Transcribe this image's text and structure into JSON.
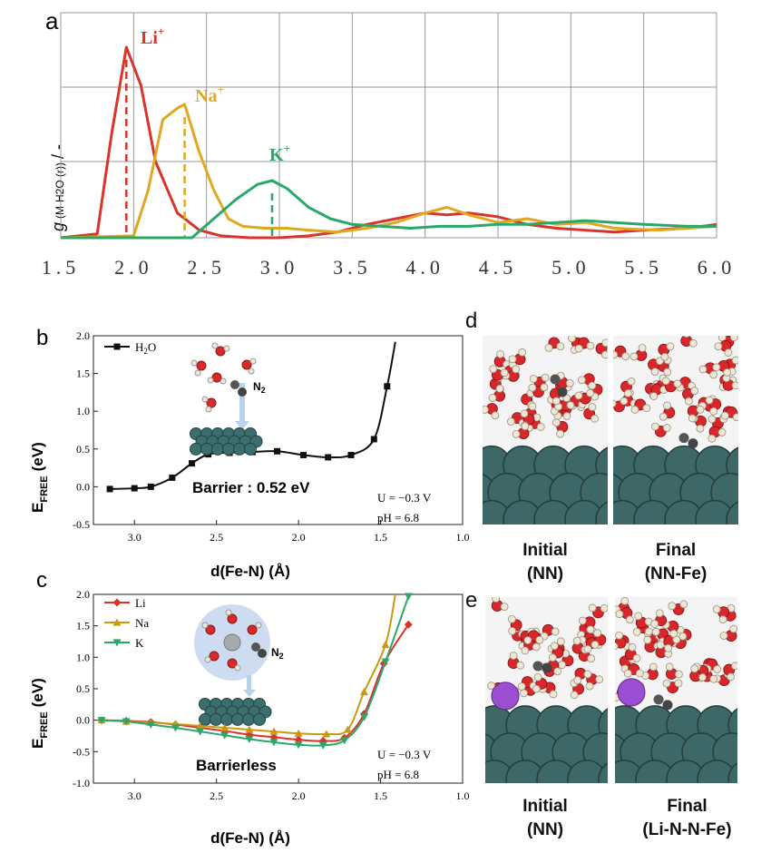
{
  "panel_labels": {
    "a": "a",
    "b": "b",
    "c": "c",
    "d": "d",
    "e": "e"
  },
  "panel_a": {
    "ylabel_g": "g",
    "ylabel_sub": "(M-H2O (r))",
    "ylabel_tail": "/ -"
  },
  "panel_b": {
    "ylabel_main": "E",
    "ylabel_sub": "FREE",
    "ylabel_unit": "(eV)",
    "xlabel": "d(Fe-N) (Å)",
    "annotation": "Barrier : 0.52 eV",
    "cond_u": "U = −0.3 V",
    "cond_ph": "pH =  6.8",
    "inset_n2": "N",
    "inset_n2_sub": "2"
  },
  "panel_c": {
    "ylabel_main": "E",
    "ylabel_sub": "FREE",
    "ylabel_unit": "(eV)",
    "xlabel": "d(Fe-N) (Å)",
    "annotation": "Barrierless",
    "cond_u": "U = −0.3 V",
    "cond_ph": "pH =  6.8",
    "inset_n2": "N",
    "inset_n2_sub": "2"
  },
  "panel_d": {
    "caption_left_1": "Initial",
    "caption_left_2": "(NN)",
    "caption_right_1": "Final",
    "caption_right_2": "(NN-Fe)"
  },
  "panel_e": {
    "caption_left_1": "Initial",
    "caption_left_2": "(NN)",
    "caption_right_1": "Final",
    "caption_right_2": "(Li-N-N-Fe)"
  },
  "colors": {
    "li": "#d9342b",
    "na": "#e0a820",
    "k": "#2aa86a",
    "black": "#111111"
  },
  "chart_data": [
    {
      "type": "line",
      "id": "a",
      "title": "",
      "xlabel": "",
      "ylabel": "g (M-H2O (r)) / -",
      "xlim": [
        1.5,
        6.0
      ],
      "ylim": [
        0,
        1.0
      ],
      "xticks": [
        1.5,
        2.0,
        2.5,
        3.0,
        3.5,
        4.0,
        4.5,
        5.0,
        5.5,
        6.0
      ],
      "xtick_labels": [
        "1.5",
        "2.0",
        "2.5",
        "3.0",
        "3.5",
        "4.0",
        "4.5",
        "5.0",
        "5.5",
        "6.0"
      ],
      "grid": true,
      "series": [
        {
          "name": "Li",
          "label": "Li",
          "sup": "+",
          "color": "#d9342b",
          "peak_x": 1.95,
          "x": [
            1.5,
            1.75,
            1.85,
            1.95,
            2.05,
            2.15,
            2.3,
            2.45,
            2.6,
            2.8,
            3.0,
            3.2,
            3.4,
            3.6,
            3.8,
            4.0,
            4.15,
            4.3,
            4.5,
            4.7,
            4.9,
            5.1,
            5.3,
            5.5,
            5.8,
            6.0
          ],
          "y": [
            0.0,
            0.02,
            0.55,
            1.0,
            0.8,
            0.4,
            0.13,
            0.04,
            0.01,
            0.0,
            0.0,
            0.01,
            0.03,
            0.07,
            0.1,
            0.13,
            0.12,
            0.13,
            0.11,
            0.07,
            0.05,
            0.04,
            0.03,
            0.04,
            0.05,
            0.07
          ]
        },
        {
          "name": "Na",
          "label": "Na",
          "sup": "+",
          "color": "#e0a820",
          "peak_x": 2.35,
          "x": [
            1.5,
            2.0,
            2.1,
            2.2,
            2.3,
            2.35,
            2.45,
            2.55,
            2.65,
            2.75,
            2.9,
            3.05,
            3.2,
            3.4,
            3.6,
            3.8,
            4.0,
            4.15,
            4.3,
            4.5,
            4.7,
            4.9,
            5.1,
            5.3,
            5.6,
            6.0
          ],
          "y": [
            0.0,
            0.01,
            0.25,
            0.62,
            0.68,
            0.7,
            0.45,
            0.25,
            0.1,
            0.06,
            0.05,
            0.05,
            0.04,
            0.03,
            0.05,
            0.08,
            0.13,
            0.16,
            0.12,
            0.08,
            0.1,
            0.07,
            0.08,
            0.05,
            0.04,
            0.06
          ]
        },
        {
          "name": "K",
          "label": "K",
          "sup": "+",
          "color": "#2aa86a",
          "peak_x": 2.95,
          "x": [
            1.5,
            2.4,
            2.55,
            2.7,
            2.85,
            2.95,
            3.05,
            3.2,
            3.35,
            3.5,
            3.7,
            3.9,
            4.1,
            4.3,
            4.5,
            4.7,
            4.9,
            5.1,
            5.3,
            5.5,
            5.8,
            6.0
          ],
          "y": [
            0.0,
            0.0,
            0.1,
            0.2,
            0.28,
            0.3,
            0.26,
            0.16,
            0.1,
            0.07,
            0.06,
            0.05,
            0.06,
            0.06,
            0.07,
            0.07,
            0.08,
            0.09,
            0.08,
            0.07,
            0.06,
            0.06
          ]
        }
      ]
    },
    {
      "type": "line",
      "id": "b",
      "xlabel": "d(Fe-N) (Å)",
      "ylabel": "E_FREE (eV)",
      "xlim": [
        3.25,
        1.0
      ],
      "ylim": [
        -0.5,
        2.0
      ],
      "xticks": [
        3.0,
        2.5,
        2.0,
        1.5,
        1.0
      ],
      "xtick_labels": [
        "3.0",
        "2.5",
        "2.0",
        "1.5",
        "1.0"
      ],
      "yticks": [
        -0.5,
        0.0,
        0.5,
        1.0,
        1.5,
        2.0
      ],
      "ytick_labels": [
        "-0.5",
        "0.0",
        "0.5",
        "1.0",
        "1.5",
        "2.0"
      ],
      "legend_position": "top-left",
      "series": [
        {
          "name": "H2O",
          "label": "H",
          "sub": "2",
          "label_tail": "O",
          "color": "#111111",
          "marker": "square",
          "x": [
            3.15,
            3.0,
            2.9,
            2.77,
            2.65,
            2.55,
            2.42,
            2.28,
            2.13,
            1.97,
            1.82,
            1.68,
            1.54,
            1.46
          ],
          "y": [
            -0.03,
            -0.02,
            0.0,
            0.12,
            0.31,
            0.43,
            0.45,
            0.46,
            0.47,
            0.42,
            0.39,
            0.42,
            0.63,
            1.33
          ],
          "tail_x": [
            1.41
          ],
          "tail_y": [
            1.92
          ]
        }
      ]
    },
    {
      "type": "line",
      "id": "c",
      "xlabel": "d(Fe-N) (Å)",
      "ylabel": "E_FREE (eV)",
      "xlim": [
        3.25,
        1.0
      ],
      "ylim": [
        -1.0,
        2.0
      ],
      "xticks": [
        3.0,
        2.5,
        2.0,
        1.5,
        1.0
      ],
      "xtick_labels": [
        "3.0",
        "2.5",
        "2.0",
        "1.5",
        "1.0"
      ],
      "yticks": [
        -1.0,
        -0.5,
        0.0,
        0.5,
        1.0,
        1.5,
        2.0
      ],
      "ytick_labels": [
        "-1.0",
        "-0.5",
        "0.0",
        "0.5",
        "1.0",
        "1.5",
        "2.0"
      ],
      "legend_position": "top-left",
      "series": [
        {
          "name": "Li",
          "label": "Li",
          "color": "#d9342b",
          "marker": "diamond",
          "x": [
            3.2,
            3.05,
            2.9,
            2.75,
            2.6,
            2.45,
            2.3,
            2.15,
            2.0,
            1.85,
            1.72,
            1.6,
            1.48,
            1.33
          ],
          "y": [
            0.0,
            -0.01,
            -0.03,
            -0.07,
            -0.12,
            -0.17,
            -0.23,
            -0.27,
            -0.31,
            -0.33,
            -0.28,
            0.1,
            0.9,
            1.52
          ],
          "tail_x": [],
          "tail_y": []
        },
        {
          "name": "Na",
          "label": "Na",
          "color": "#c99a10",
          "marker": "triangle-up",
          "x": [
            3.2,
            3.05,
            2.9,
            2.75,
            2.6,
            2.45,
            2.3,
            2.15,
            2.0,
            1.83,
            1.7,
            1.6,
            1.47
          ],
          "y": [
            0.0,
            -0.02,
            -0.04,
            -0.06,
            -0.09,
            -0.12,
            -0.15,
            -0.18,
            -0.21,
            -0.22,
            -0.15,
            0.45,
            1.2
          ],
          "tail_x": [
            1.41
          ],
          "tail_y": [
            2.0
          ]
        },
        {
          "name": "K",
          "label": "K",
          "color": "#2aa86a",
          "marker": "triangle-down",
          "x": [
            3.2,
            3.05,
            2.9,
            2.75,
            2.6,
            2.45,
            2.3,
            2.15,
            2.0,
            1.85,
            1.72,
            1.6,
            1.47,
            1.33
          ],
          "y": [
            0.0,
            -0.02,
            -0.07,
            -0.12,
            -0.18,
            -0.24,
            -0.3,
            -0.35,
            -0.39,
            -0.4,
            -0.32,
            0.05,
            0.93,
            1.97
          ],
          "tail_x": [],
          "tail_y": []
        }
      ]
    }
  ]
}
